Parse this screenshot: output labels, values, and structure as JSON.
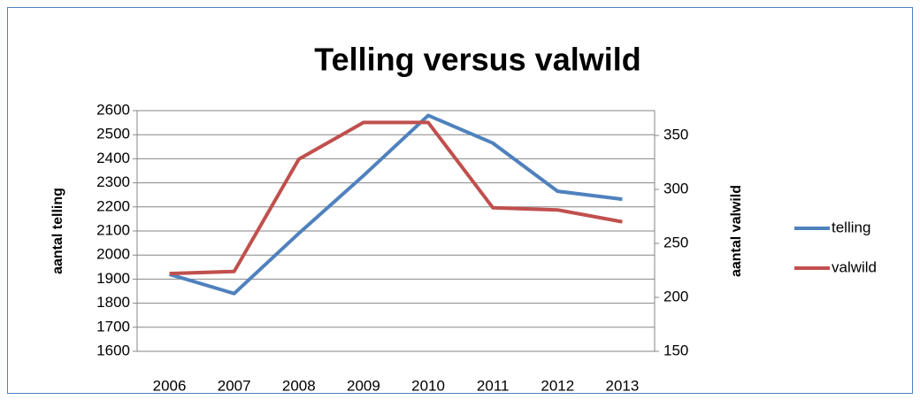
{
  "chart_data": {
    "type": "line",
    "title": "Telling versus valwild",
    "categories": [
      "2006",
      "2007",
      "2008",
      "2009",
      "2010",
      "2011",
      "2012",
      "2013"
    ],
    "y_label": "aantal telling",
    "y2_label": "aantal valwild",
    "series": [
      {
        "name": "telling",
        "color": "#4f81bd",
        "values": [
          1920,
          1840,
          2090,
          2330,
          2580,
          2465,
          2265,
          2232
        ]
      },
      {
        "name": "valwild",
        "color": "#c0504d",
        "axis": "y2",
        "values": [
          222,
          224,
          328,
          362,
          362,
          283,
          281,
          270
        ]
      }
    ],
    "ylim": [
      1600,
      2600
    ],
    "yticks": [
      1600,
      1700,
      1800,
      1900,
      2000,
      2100,
      2200,
      2300,
      2400,
      2500,
      2600
    ],
    "y2lim": [
      150,
      373
    ],
    "y2ticks": [
      150,
      200,
      250,
      300,
      350
    ],
    "grid": true,
    "legend": "right"
  }
}
